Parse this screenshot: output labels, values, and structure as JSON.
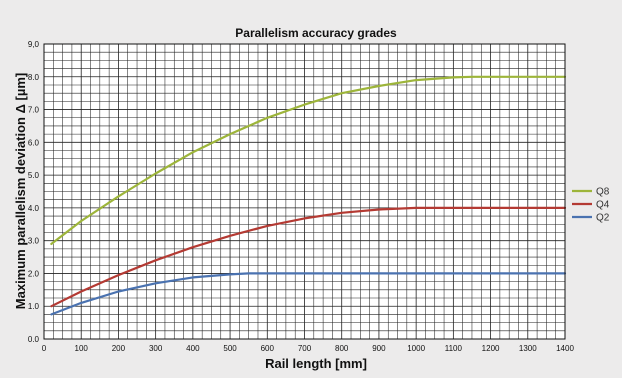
{
  "chart_data": {
    "type": "line",
    "title": "Parallelism accuracy grades",
    "xlabel": "Rail length [mm]",
    "ylabel": "Maximum parallelism deviation Δ [µm]",
    "xlim": [
      0,
      1400
    ],
    "ylim": [
      0,
      9.0
    ],
    "x_ticks": [
      "0",
      "100",
      "200",
      "300",
      "400",
      "500",
      "600",
      "700",
      "800",
      "900",
      "1000",
      "1100",
      "1200",
      "1300",
      "1400"
    ],
    "y_ticks": [
      "0.0",
      "1.0",
      "2.0",
      "3.0",
      "4.0",
      "5.0",
      "6.0",
      "7.0",
      "8.0",
      "9,0"
    ],
    "grid": true,
    "legend_position": "right",
    "series": [
      {
        "name": "Q8",
        "color": "#9db53a",
        "x": [
          20,
          100,
          200,
          300,
          400,
          500,
          600,
          700,
          800,
          900,
          1000,
          1100,
          1150,
          1200,
          1300,
          1400
        ],
        "y": [
          2.9,
          3.6,
          4.35,
          5.05,
          5.7,
          6.25,
          6.75,
          7.15,
          7.5,
          7.72,
          7.9,
          7.98,
          8.0,
          8.0,
          8.0,
          8.0
        ]
      },
      {
        "name": "Q4",
        "color": "#b43a33",
        "x": [
          20,
          100,
          200,
          300,
          400,
          500,
          600,
          700,
          800,
          900,
          1000,
          1050,
          1100,
          1200,
          1300,
          1400
        ],
        "y": [
          1.0,
          1.45,
          1.95,
          2.4,
          2.8,
          3.15,
          3.45,
          3.68,
          3.85,
          3.95,
          4.0,
          4.0,
          4.0,
          4.0,
          4.0,
          4.0
        ]
      },
      {
        "name": "Q2",
        "color": "#4a72b0",
        "x": [
          20,
          100,
          200,
          300,
          400,
          500,
          550,
          600,
          700,
          800,
          900,
          1000,
          1100,
          1200,
          1300,
          1400
        ],
        "y": [
          0.75,
          1.1,
          1.45,
          1.7,
          1.88,
          1.97,
          2.0,
          2.0,
          2.0,
          2.0,
          2.0,
          2.0,
          2.0,
          2.0,
          2.0,
          2.0
        ]
      }
    ]
  }
}
